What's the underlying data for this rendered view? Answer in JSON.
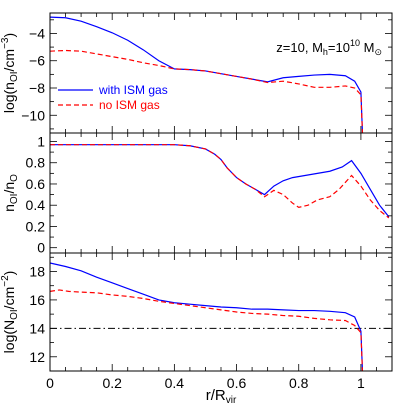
{
  "chart_data": [
    {
      "type": "line",
      "ylabel_parts": {
        "main": "log(n",
        "sub": "OI",
        "tail": "/cm",
        "sup": "−3",
        "close": ")"
      },
      "annotation_parts": {
        "a": "z=10,  M",
        "a_sub": "h",
        "b": "=10",
        "b_sup": "10",
        "c": " M",
        "c_sub": "⊙"
      },
      "xlim": [
        0,
        1.1
      ],
      "ylim": [
        -11.3,
        -2.5
      ],
      "yticks": [
        -4,
        -6,
        -8,
        -10
      ],
      "grid": false,
      "legend_position": "middle-left",
      "series": [
        {
          "name": "with ISM gas",
          "color": "#0000ff",
          "dash": "solid",
          "points": [
            [
              0,
              -2.8
            ],
            [
              0.05,
              -2.85
            ],
            [
              0.1,
              -3.1
            ],
            [
              0.15,
              -3.5
            ],
            [
              0.2,
              -3.95
            ],
            [
              0.25,
              -4.5
            ],
            [
              0.3,
              -5.2
            ],
            [
              0.35,
              -6.0
            ],
            [
              0.4,
              -6.6
            ],
            [
              0.45,
              -6.65
            ],
            [
              0.5,
              -6.75
            ],
            [
              0.55,
              -6.95
            ],
            [
              0.6,
              -7.15
            ],
            [
              0.65,
              -7.35
            ],
            [
              0.7,
              -7.55
            ],
            [
              0.75,
              -7.25
            ],
            [
              0.8,
              -7.15
            ],
            [
              0.85,
              -7.05
            ],
            [
              0.9,
              -7.0
            ],
            [
              0.95,
              -7.1
            ],
            [
              0.98,
              -7.5
            ],
            [
              1.0,
              -8.3
            ],
            [
              1.005,
              -11.3
            ]
          ]
        },
        {
          "name": "no ISM gas",
          "color": "#ff0000",
          "dash": "dashed",
          "points": [
            [
              0,
              -5.3
            ],
            [
              0.05,
              -5.25
            ],
            [
              0.1,
              -5.3
            ],
            [
              0.15,
              -5.5
            ],
            [
              0.2,
              -5.7
            ],
            [
              0.25,
              -5.9
            ],
            [
              0.3,
              -6.15
            ],
            [
              0.35,
              -6.35
            ],
            [
              0.4,
              -6.6
            ],
            [
              0.45,
              -6.65
            ],
            [
              0.5,
              -6.75
            ],
            [
              0.55,
              -6.95
            ],
            [
              0.6,
              -7.15
            ],
            [
              0.65,
              -7.35
            ],
            [
              0.7,
              -7.6
            ],
            [
              0.75,
              -7.5
            ],
            [
              0.8,
              -7.7
            ],
            [
              0.85,
              -7.95
            ],
            [
              0.9,
              -7.95
            ],
            [
              0.95,
              -7.85
            ],
            [
              0.98,
              -8.0
            ],
            [
              1.0,
              -8.5
            ],
            [
              1.005,
              -11.3
            ]
          ]
        }
      ]
    },
    {
      "type": "line",
      "ylabel_parts": {
        "main": "n",
        "sub": "OI",
        "tail": "/n",
        "sub2": "O"
      },
      "xlim": [
        0,
        1.1
      ],
      "ylim": [
        -0.05,
        1.08
      ],
      "yticks": [
        0,
        0.2,
        0.4,
        0.6,
        0.8,
        1
      ],
      "ytick_labels": [
        "0",
        "0.2",
        "0.4",
        "0.6",
        "0.8",
        "1"
      ],
      "grid": false,
      "series": [
        {
          "name": "with ISM gas",
          "color": "#0000ff",
          "dash": "solid",
          "points": [
            [
              0,
              0.97
            ],
            [
              0.1,
              0.97
            ],
            [
              0.2,
              0.97
            ],
            [
              0.3,
              0.97
            ],
            [
              0.4,
              0.97
            ],
            [
              0.45,
              0.96
            ],
            [
              0.5,
              0.93
            ],
            [
              0.53,
              0.88
            ],
            [
              0.55,
              0.83
            ],
            [
              0.57,
              0.75
            ],
            [
              0.6,
              0.66
            ],
            [
              0.63,
              0.6
            ],
            [
              0.66,
              0.55
            ],
            [
              0.69,
              0.5
            ],
            [
              0.72,
              0.58
            ],
            [
              0.75,
              0.63
            ],
            [
              0.78,
              0.66
            ],
            [
              0.82,
              0.68
            ],
            [
              0.86,
              0.7
            ],
            [
              0.9,
              0.72
            ],
            [
              0.94,
              0.76
            ],
            [
              0.97,
              0.82
            ],
            [
              1.0,
              0.7
            ],
            [
              1.03,
              0.55
            ],
            [
              1.06,
              0.4
            ],
            [
              1.09,
              0.29
            ]
          ]
        },
        {
          "name": "no ISM gas",
          "color": "#ff0000",
          "dash": "dashed",
          "points": [
            [
              0,
              0.97
            ],
            [
              0.1,
              0.97
            ],
            [
              0.2,
              0.97
            ],
            [
              0.3,
              0.97
            ],
            [
              0.4,
              0.97
            ],
            [
              0.45,
              0.96
            ],
            [
              0.5,
              0.93
            ],
            [
              0.53,
              0.88
            ],
            [
              0.55,
              0.83
            ],
            [
              0.57,
              0.75
            ],
            [
              0.6,
              0.66
            ],
            [
              0.63,
              0.6
            ],
            [
              0.66,
              0.55
            ],
            [
              0.69,
              0.48
            ],
            [
              0.72,
              0.54
            ],
            [
              0.75,
              0.5
            ],
            [
              0.78,
              0.42
            ],
            [
              0.8,
              0.38
            ],
            [
              0.83,
              0.4
            ],
            [
              0.86,
              0.45
            ],
            [
              0.9,
              0.48
            ],
            [
              0.93,
              0.55
            ],
            [
              0.97,
              0.68
            ],
            [
              1.0,
              0.58
            ],
            [
              1.03,
              0.45
            ],
            [
              1.06,
              0.35
            ],
            [
              1.09,
              0.28
            ]
          ]
        }
      ]
    },
    {
      "type": "line",
      "ylabel_parts": {
        "main": "log(N",
        "sub": "OI",
        "tail": "/cm",
        "sup": "−2",
        "close": ")"
      },
      "xlabel_parts": {
        "main": "r/R",
        "sub": "vir"
      },
      "xlim": [
        0,
        1.1
      ],
      "ylim": [
        11,
        19.3
      ],
      "yticks": [
        12,
        14,
        16,
        18
      ],
      "xticks": [
        0,
        0.2,
        0.4,
        0.6,
        0.8,
        1
      ],
      "xtick_labels": [
        "0",
        "0.2",
        "0.4",
        "0.6",
        "0.8",
        "1"
      ],
      "grid": false,
      "reference_line": {
        "y": 14,
        "style": "dash-dot",
        "color": "#000000"
      },
      "series": [
        {
          "name": "with ISM gas",
          "color": "#0000ff",
          "dash": "solid",
          "points": [
            [
              0,
              18.6
            ],
            [
              0.05,
              18.35
            ],
            [
              0.1,
              18.05
            ],
            [
              0.15,
              17.6
            ],
            [
              0.2,
              17.2
            ],
            [
              0.25,
              16.8
            ],
            [
              0.3,
              16.4
            ],
            [
              0.35,
              16.0
            ],
            [
              0.4,
              15.8
            ],
            [
              0.45,
              15.7
            ],
            [
              0.5,
              15.6
            ],
            [
              0.55,
              15.5
            ],
            [
              0.6,
              15.45
            ],
            [
              0.65,
              15.35
            ],
            [
              0.7,
              15.35
            ],
            [
              0.75,
              15.3
            ],
            [
              0.8,
              15.25
            ],
            [
              0.85,
              15.25
            ],
            [
              0.9,
              15.2
            ],
            [
              0.95,
              15.1
            ],
            [
              0.98,
              14.8
            ],
            [
              1.0,
              13.8
            ],
            [
              1.005,
              11.0
            ]
          ]
        },
        {
          "name": "no ISM gas",
          "color": "#ff0000",
          "dash": "dashed",
          "points": [
            [
              0,
              16.6
            ],
            [
              0.03,
              16.7
            ],
            [
              0.06,
              16.6
            ],
            [
              0.1,
              16.55
            ],
            [
              0.15,
              16.5
            ],
            [
              0.2,
              16.35
            ],
            [
              0.25,
              16.25
            ],
            [
              0.3,
              16.1
            ],
            [
              0.35,
              15.9
            ],
            [
              0.4,
              15.75
            ],
            [
              0.45,
              15.6
            ],
            [
              0.5,
              15.45
            ],
            [
              0.55,
              15.3
            ],
            [
              0.6,
              15.15
            ],
            [
              0.65,
              15.05
            ],
            [
              0.7,
              15.0
            ],
            [
              0.75,
              14.9
            ],
            [
              0.8,
              14.85
            ],
            [
              0.85,
              14.7
            ],
            [
              0.9,
              14.6
            ],
            [
              0.95,
              14.55
            ],
            [
              0.98,
              14.2
            ],
            [
              1.0,
              13.7
            ],
            [
              1.005,
              11.0
            ]
          ]
        }
      ]
    }
  ]
}
